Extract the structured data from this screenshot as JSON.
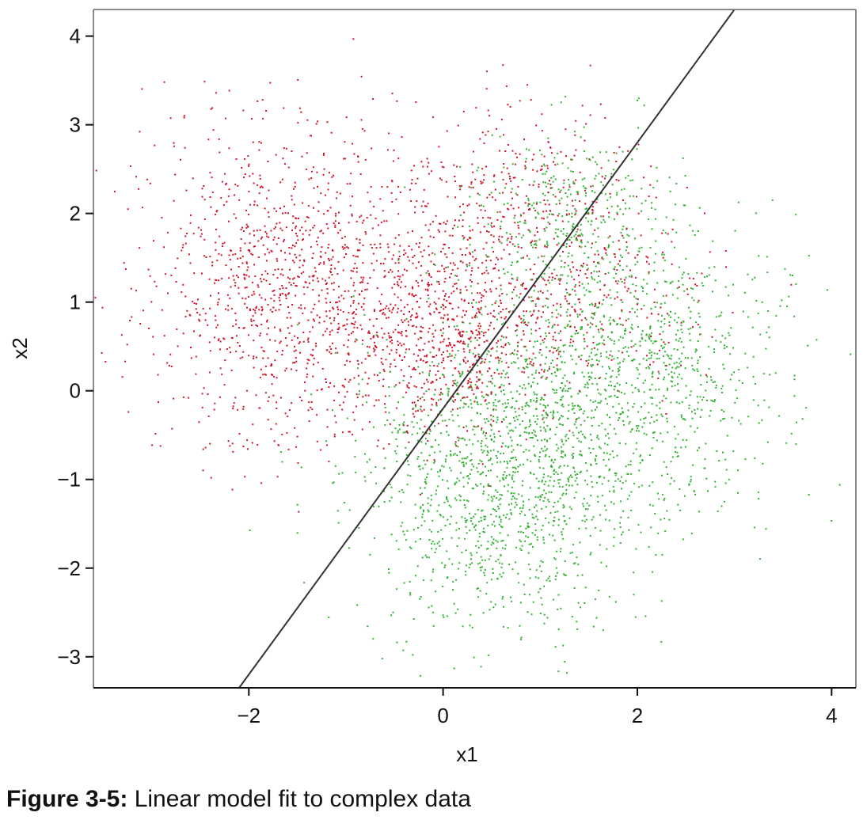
{
  "caption": {
    "label": "Figure 3-5:",
    "text": "Linear model fit to complex data"
  },
  "chart_data": {
    "type": "scatter",
    "xlabel": "x1",
    "ylabel": "x2",
    "xlim": [
      -3.6,
      4.25
    ],
    "ylim": [
      -3.35,
      4.3
    ],
    "x_ticks": [
      -2,
      0,
      2,
      4
    ],
    "y_ticks": [
      -3,
      -2,
      -1,
      0,
      1,
      2,
      3,
      4
    ],
    "x_tick_labels": [
      "−2",
      "0",
      "2",
      "4"
    ],
    "y_tick_labels": [
      "−3",
      "−2",
      "−1",
      "0",
      "1",
      "2",
      "3",
      "4"
    ],
    "grid": false,
    "legend": "none",
    "series": [
      {
        "color": "#d0152a",
        "clusters": [
          {
            "center": [
              -1.5,
              1.2
            ],
            "spread": [
              0.8,
              0.9
            ],
            "n": 1200
          },
          {
            "center": [
              0.0,
              0.6
            ],
            "spread": [
              0.55,
              0.55
            ],
            "n": 700
          },
          {
            "center": [
              0.8,
              2.2
            ],
            "spread": [
              0.6,
              0.55
            ],
            "n": 350
          },
          {
            "center": [
              1.6,
              1.0
            ],
            "spread": [
              0.6,
              0.5
            ],
            "n": 250
          }
        ]
      },
      {
        "color": "#33b233",
        "clusters": [
          {
            "center": [
              0.6,
              -1.0
            ],
            "spread": [
              0.75,
              0.85
            ],
            "n": 1300
          },
          {
            "center": [
              1.8,
              0.3
            ],
            "spread": [
              0.8,
              0.85
            ],
            "n": 1200
          },
          {
            "center": [
              1.3,
              2.0
            ],
            "spread": [
              0.5,
              0.45
            ],
            "n": 300
          }
        ]
      }
    ],
    "fit_line": {
      "color": "#333333",
      "points": [
        [
          -2.1,
          -3.35
        ],
        [
          3.0,
          4.3
        ]
      ]
    }
  }
}
